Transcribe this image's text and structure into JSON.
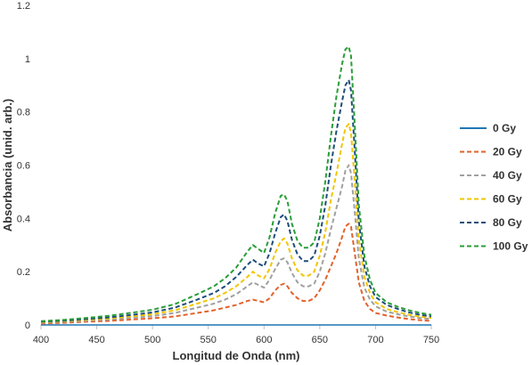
{
  "chart_data": {
    "type": "line",
    "title": "",
    "xlabel": "Longitud de Onda (nm)",
    "ylabel": "Absorbancia (unid. arb.)",
    "xlim": [
      400,
      750
    ],
    "ylim": [
      0,
      1.2
    ],
    "x_ticks": [
      "400",
      "450",
      "500",
      "550",
      "600",
      "650",
      "700",
      "750"
    ],
    "y_ticks": [
      "0",
      "0.2",
      "0.4",
      "0.6",
      "0.8",
      "1",
      "1.2"
    ],
    "grid": false,
    "legend_position": "right",
    "x": [
      400,
      420,
      440,
      460,
      480,
      500,
      520,
      540,
      555,
      565,
      575,
      585,
      590,
      595,
      600,
      605,
      610,
      615,
      618,
      621,
      625,
      630,
      635,
      640,
      645,
      650,
      655,
      660,
      665,
      670,
      673,
      676,
      678,
      681,
      685,
      690,
      695,
      700,
      710,
      720,
      730,
      740,
      750
    ],
    "series": [
      {
        "name": "0 Gy",
        "color": "#1f77b4",
        "dash": "solid",
        "values": [
          0,
          0,
          0,
          0,
          0,
          0,
          0,
          0,
          0,
          0,
          0,
          0,
          0,
          0,
          0,
          0,
          0,
          0,
          0,
          0,
          0,
          0,
          0,
          0,
          0,
          0,
          0,
          0,
          0,
          0,
          0,
          0,
          0,
          0,
          0,
          0,
          0,
          0,
          0,
          0,
          0,
          0,
          0
        ]
      },
      {
        "name": "20 Gy",
        "color": "#e2622b",
        "dash": "dashed",
        "values": [
          0.005,
          0.008,
          0.012,
          0.015,
          0.02,
          0.025,
          0.032,
          0.045,
          0.055,
          0.065,
          0.075,
          0.09,
          0.095,
          0.09,
          0.085,
          0.1,
          0.13,
          0.15,
          0.155,
          0.145,
          0.12,
          0.1,
          0.09,
          0.09,
          0.1,
          0.13,
          0.17,
          0.22,
          0.27,
          0.33,
          0.37,
          0.38,
          0.37,
          0.28,
          0.16,
          0.09,
          0.06,
          0.045,
          0.035,
          0.028,
          0.022,
          0.018,
          0.015
        ]
      },
      {
        "name": "40 Gy",
        "color": "#a0a0a0",
        "dash": "dashed",
        "values": [
          0.008,
          0.012,
          0.016,
          0.02,
          0.027,
          0.033,
          0.045,
          0.065,
          0.08,
          0.095,
          0.115,
          0.145,
          0.16,
          0.15,
          0.14,
          0.17,
          0.21,
          0.245,
          0.25,
          0.235,
          0.195,
          0.16,
          0.145,
          0.145,
          0.155,
          0.2,
          0.27,
          0.36,
          0.44,
          0.52,
          0.58,
          0.6,
          0.57,
          0.44,
          0.25,
          0.14,
          0.095,
          0.07,
          0.05,
          0.04,
          0.032,
          0.026,
          0.022
        ]
      },
      {
        "name": "60 Gy",
        "color": "#f2c500",
        "dash": "dashed",
        "values": [
          0.01,
          0.014,
          0.019,
          0.024,
          0.032,
          0.04,
          0.055,
          0.08,
          0.1,
          0.12,
          0.145,
          0.18,
          0.2,
          0.185,
          0.175,
          0.21,
          0.27,
          0.315,
          0.325,
          0.305,
          0.25,
          0.205,
          0.185,
          0.185,
          0.2,
          0.26,
          0.35,
          0.47,
          0.57,
          0.68,
          0.74,
          0.755,
          0.72,
          0.56,
          0.32,
          0.18,
          0.12,
          0.085,
          0.06,
          0.048,
          0.038,
          0.031,
          0.026
        ]
      },
      {
        "name": "80 Gy",
        "color": "#1e4e79",
        "dash": "dashed",
        "values": [
          0.012,
          0.016,
          0.022,
          0.028,
          0.037,
          0.047,
          0.065,
          0.095,
          0.12,
          0.145,
          0.18,
          0.225,
          0.245,
          0.23,
          0.22,
          0.27,
          0.345,
          0.405,
          0.415,
          0.39,
          0.32,
          0.265,
          0.24,
          0.24,
          0.26,
          0.335,
          0.45,
          0.6,
          0.73,
          0.84,
          0.9,
          0.92,
          0.88,
          0.68,
          0.39,
          0.22,
          0.145,
          0.105,
          0.075,
          0.06,
          0.047,
          0.038,
          0.032
        ]
      },
      {
        "name": "100 Gy",
        "color": "#2a9d38",
        "dash": "dashed",
        "values": [
          0.014,
          0.019,
          0.026,
          0.034,
          0.045,
          0.057,
          0.078,
          0.115,
          0.145,
          0.175,
          0.215,
          0.275,
          0.3,
          0.285,
          0.27,
          0.33,
          0.42,
          0.485,
          0.49,
          0.465,
          0.38,
          0.315,
          0.29,
          0.29,
          0.31,
          0.4,
          0.54,
          0.71,
          0.86,
          0.98,
          1.035,
          1.045,
          1.01,
          0.78,
          0.45,
          0.26,
          0.17,
          0.12,
          0.085,
          0.068,
          0.055,
          0.045,
          0.038
        ]
      }
    ]
  }
}
